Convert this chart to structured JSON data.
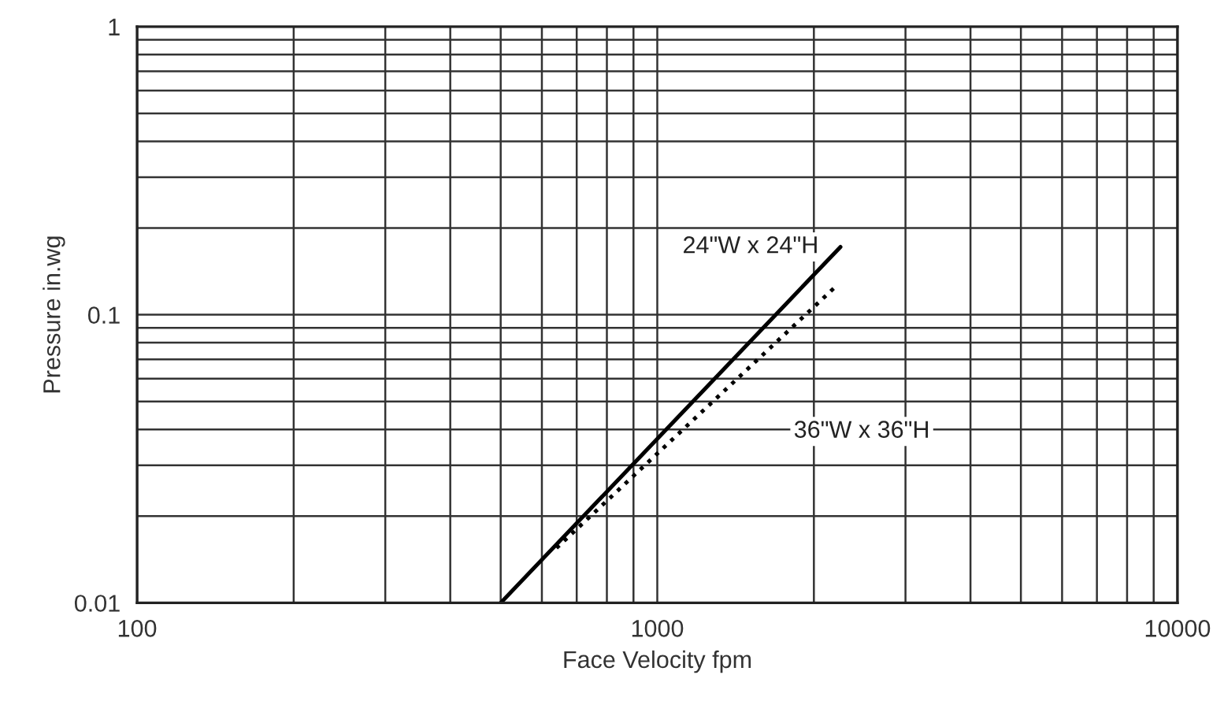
{
  "chart_data": {
    "type": "line",
    "xlabel": "Face Velocity fpm",
    "ylabel": "Pressure in.wg",
    "log": "xy",
    "grid": true,
    "legend": false,
    "xlim": [
      100,
      10000
    ],
    "ylim": [
      0.01,
      1
    ],
    "xticks": [
      100,
      {
        "value": 200,
        "label": null
      },
      {
        "value": 300,
        "label": null
      },
      {
        "value": 400,
        "label": null
      },
      {
        "value": 500,
        "label": null
      },
      {
        "value": 600,
        "label": null
      },
      {
        "value": 700,
        "label": null
      },
      {
        "value": 800,
        "label": null
      },
      {
        "value": 900,
        "label": null
      },
      1000,
      {
        "value": 2000,
        "label": null
      },
      {
        "value": 3000,
        "label": null
      },
      {
        "value": 4000,
        "label": null
      },
      {
        "value": 5000,
        "label": null
      },
      {
        "value": 6000,
        "label": null
      },
      {
        "value": 7000,
        "label": null
      },
      {
        "value": 8000,
        "label": null
      },
      {
        "value": 9000,
        "label": null
      },
      10000
    ],
    "yticks": [
      0.01,
      {
        "value": 0.02,
        "label": null
      },
      {
        "value": 0.03,
        "label": null
      },
      {
        "value": 0.04,
        "label": null
      },
      {
        "value": 0.05,
        "label": null
      },
      {
        "value": 0.06,
        "label": null
      },
      {
        "value": 0.07,
        "label": null
      },
      {
        "value": 0.08,
        "label": null
      },
      {
        "value": 0.09,
        "label": null
      },
      0.1,
      {
        "value": 0.2,
        "label": null
      },
      {
        "value": 0.3,
        "label": null
      },
      {
        "value": 0.4,
        "label": null
      },
      {
        "value": 0.5,
        "label": null
      },
      {
        "value": 0.6,
        "label": null
      },
      {
        "value": 0.7,
        "label": null
      },
      {
        "value": 0.8,
        "label": null
      },
      {
        "value": 0.9,
        "label": null
      },
      1
    ],
    "series": [
      {
        "name": "24\"W x 24\"H",
        "color": "#000000",
        "line_style": "solid",
        "x": [
          500,
          2250
        ],
        "values": [
          0.01,
          0.172
        ]
      },
      {
        "name": "36\"W x 36\"H",
        "color": "#000000",
        "line_style": "dotted",
        "x": [
          640,
          2220
        ],
        "values": [
          0.0155,
          0.127
        ]
      }
    ]
  }
}
